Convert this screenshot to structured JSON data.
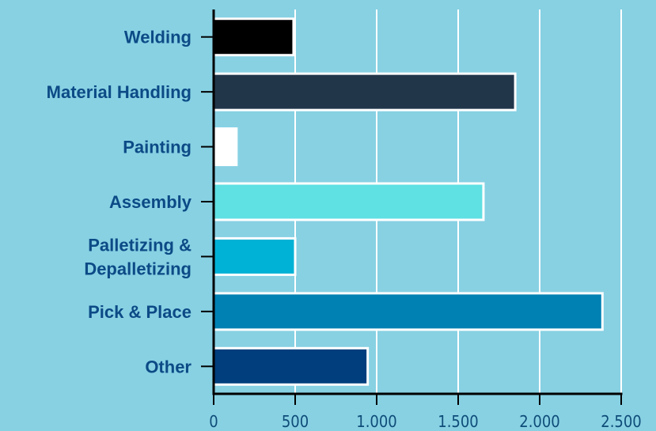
{
  "chart_data": {
    "type": "bar",
    "orientation": "horizontal",
    "title": "",
    "xlabel": "",
    "ylabel": "",
    "categories": [
      "Welding",
      "Material Handling",
      "Painting",
      "Assembly",
      "Palletizing &\nDepalletizing",
      "Pick & Place",
      "Other"
    ],
    "values": [
      490,
      1850,
      140,
      1655,
      500,
      2385,
      945
    ],
    "colors": [
      "#000000",
      "#22364a",
      "#ffffff",
      "#5fe0e3",
      "#00b2d6",
      "#0081b3",
      "#003e7d"
    ],
    "xlim": [
      0,
      2500
    ],
    "xticks": [
      0,
      500,
      1000,
      1500,
      2000,
      2500
    ],
    "xtick_labels": [
      "0",
      "500",
      "1.000",
      "1.500",
      "2.000",
      "2.500"
    ],
    "grid": "vertical",
    "legend": "none",
    "background": "#87d1e3",
    "label_color": "#0c4a86",
    "gridline_color": "#ffffff",
    "bar_outline_color": "#ffffff"
  }
}
